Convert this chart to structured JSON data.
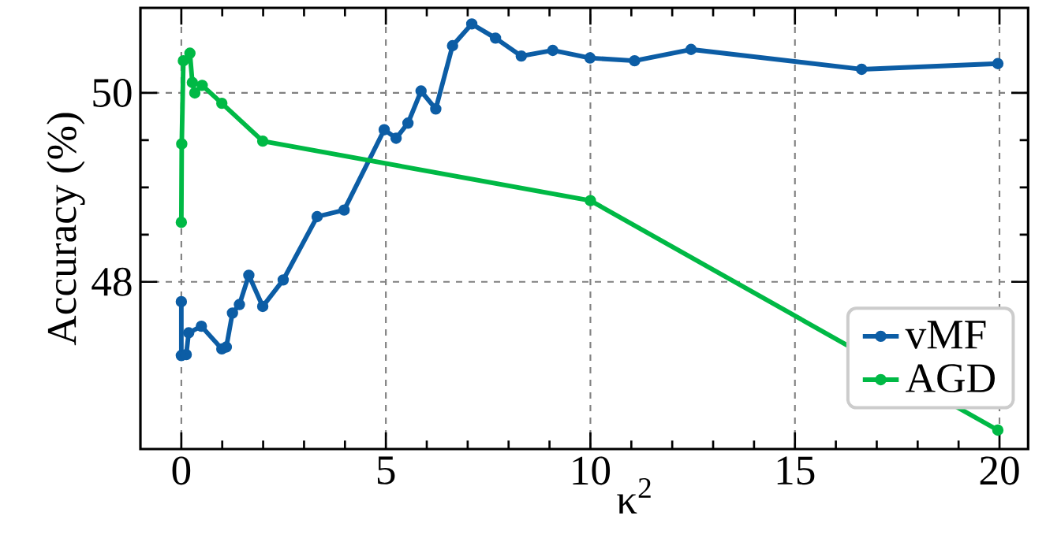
{
  "chart_data": {
    "type": "line",
    "xlabel": "κ$^{2}$",
    "ylabel": "Accuracy (%)",
    "xlim": [
      -1,
      20.7
    ],
    "ylim": [
      46.23,
      50.9
    ],
    "xticks": [
      0,
      5,
      10,
      15,
      20
    ],
    "yticks": [
      48,
      50
    ],
    "grid": true,
    "legend": "bottom right",
    "marker": "circle",
    "line_style": "solid",
    "series": [
      {
        "name": "vMF",
        "color": "#0c5da5",
        "x": [
          0,
          0,
          0.12,
          0.18,
          0.49,
          0.99,
          1.1,
          1.25,
          1.42,
          1.65,
          1.99,
          2.49,
          3.32,
          3.98,
          4.96,
          5.25,
          5.54,
          5.86,
          6.22,
          6.63,
          7.1,
          7.68,
          8.31,
          9.08,
          9.99,
          11.08,
          12.46,
          16.63,
          19.96
        ],
        "values": [
          47.79,
          47.22,
          47.23,
          47.46,
          47.53,
          47.29,
          47.31,
          47.67,
          47.76,
          48.07,
          47.74,
          48.02,
          48.69,
          48.76,
          49.61,
          49.52,
          49.68,
          50.02,
          49.83,
          50.5,
          50.73,
          50.58,
          50.39,
          50.45,
          50.37,
          50.34,
          50.46,
          50.25,
          50.31
        ]
      },
      {
        "name": "AGD",
        "color": "#00b945",
        "x": [
          0,
          0.01,
          0.05,
          0.21,
          0.27,
          0.33,
          0.51,
          0.99,
          1.99,
          10.0,
          19.96
        ],
        "values": [
          48.63,
          49.46,
          50.34,
          50.42,
          50.11,
          50.0,
          50.08,
          49.89,
          49.49,
          48.86,
          46.43
        ]
      }
    ]
  }
}
